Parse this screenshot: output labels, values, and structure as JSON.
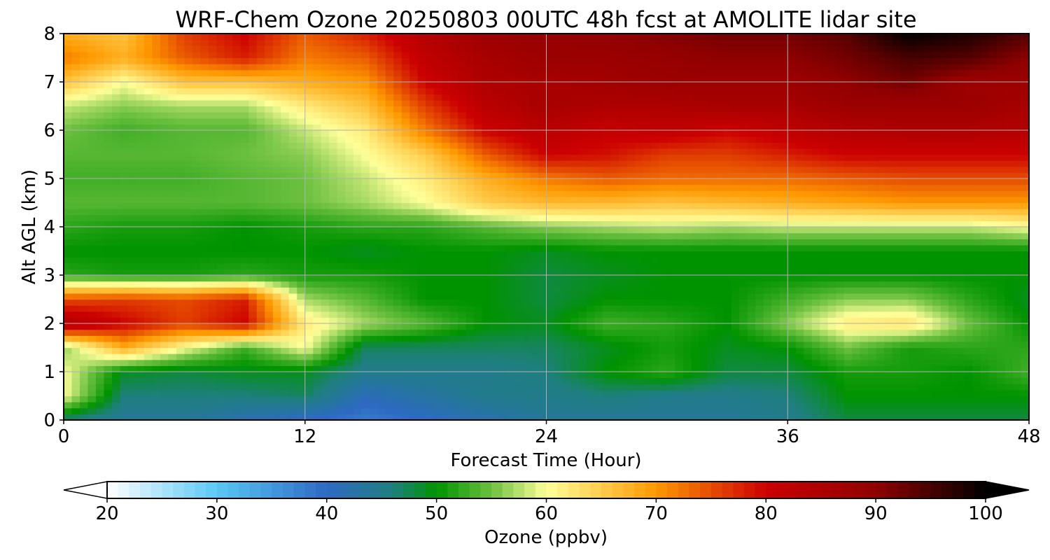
{
  "chart_data": {
    "type": "heatmap",
    "title": "WRF-Chem Ozone  20250803 00UTC 48h fcst at AMOLITE lidar site",
    "xlabel": "Forecast Time (Hour)",
    "ylabel": "Alt AGL (km)",
    "xlim": [
      0,
      48
    ],
    "ylim": [
      0,
      8
    ],
    "x_ticks": [
      "0",
      "12",
      "24",
      "36",
      "48"
    ],
    "y_ticks": [
      "0",
      "1",
      "2",
      "3",
      "4",
      "5",
      "6",
      "7",
      "8"
    ],
    "grid": true,
    "x": [
      0,
      3,
      6,
      9,
      12,
      15,
      18,
      21,
      24,
      27,
      30,
      33,
      36,
      39,
      42,
      45,
      48
    ],
    "y": [
      0,
      0.5,
      1,
      1.5,
      2,
      2.5,
      3,
      3.5,
      4,
      4.5,
      5,
      5.5,
      6,
      6.5,
      7,
      7.5,
      8
    ],
    "z": [
      [
        46,
        44,
        44,
        42,
        40,
        38,
        40,
        42,
        44,
        44,
        44,
        44,
        45,
        48,
        48,
        48,
        48
      ],
      [
        60,
        46,
        46,
        46,
        47,
        41,
        43,
        45,
        45,
        46,
        45,
        45,
        46,
        50,
        50,
        50,
        50
      ],
      [
        60,
        49,
        48,
        49,
        49,
        45,
        45,
        45,
        46,
        50,
        52,
        48,
        48,
        51,
        51,
        50,
        53
      ],
      [
        56,
        68,
        60,
        53,
        60,
        47,
        47,
        47,
        47,
        49,
        51,
        49,
        50,
        55,
        51,
        52,
        52
      ],
      [
        85,
        80,
        76,
        80,
        62,
        57,
        54,
        50,
        49,
        53,
        52,
        50,
        56,
        62,
        63,
        55,
        50
      ],
      [
        75,
        76,
        75,
        78,
        57,
        54,
        50,
        50,
        48,
        50,
        50,
        50,
        53,
        56,
        56,
        52,
        49
      ],
      [
        52,
        51,
        51,
        52,
        51,
        51,
        50,
        50,
        48,
        49,
        50,
        50,
        50,
        50,
        50,
        50,
        50
      ],
      [
        50,
        50,
        50,
        50,
        50,
        49,
        50,
        50,
        49,
        50,
        50,
        50,
        50,
        50,
        50,
        50,
        50
      ],
      [
        52,
        51,
        51,
        50,
        51,
        52,
        52,
        54,
        56,
        57,
        58,
        57,
        58,
        58,
        58,
        58,
        60
      ],
      [
        54,
        54,
        54,
        54,
        55,
        57,
        60,
        65,
        67,
        67,
        66,
        67,
        68,
        69,
        70,
        70,
        70
      ],
      [
        53,
        53,
        53,
        54,
        55,
        58,
        62,
        68,
        72,
        74,
        73,
        73,
        73,
        74,
        75,
        75,
        75
      ],
      [
        54,
        54,
        54,
        55,
        56,
        60,
        65,
        74,
        80,
        79,
        76,
        76,
        78,
        80,
        80,
        80,
        80
      ],
      [
        55,
        53,
        54,
        54,
        58,
        62,
        72,
        80,
        83,
        81,
        82,
        80,
        82,
        84,
        85,
        85,
        84
      ],
      [
        58,
        56,
        57,
        57,
        62,
        66,
        76,
        83,
        86,
        85,
        85,
        86,
        86,
        88,
        88,
        88,
        86
      ],
      [
        66,
        60,
        66,
        66,
        68,
        70,
        80,
        85,
        86,
        87,
        88,
        88,
        88,
        90,
        92,
        88,
        88
      ],
      [
        72,
        68,
        74,
        78,
        72,
        74,
        82,
        86,
        88,
        88,
        89,
        90,
        90,
        92,
        95,
        94,
        90
      ],
      [
        68,
        66,
        76,
        80,
        74,
        78,
        84,
        88,
        89,
        90,
        91,
        92,
        92,
        94,
        100,
        98,
        94
      ]
    ],
    "colorbar": {
      "label": "Ozone  (ppbv)",
      "vmin": 20,
      "vmax": 100,
      "ticks": [
        "20",
        "30",
        "40",
        "50",
        "60",
        "70",
        "80",
        "90",
        "100"
      ],
      "extend": "both",
      "stops": [
        {
          "v": 20,
          "color": "#ffffff"
        },
        {
          "v": 30,
          "color": "#5ac8f5"
        },
        {
          "v": 40,
          "color": "#2d69c3"
        },
        {
          "v": 46,
          "color": "#1f7f7f"
        },
        {
          "v": 50,
          "color": "#009300"
        },
        {
          "v": 55,
          "color": "#6cc040"
        },
        {
          "v": 60,
          "color": "#ffff99"
        },
        {
          "v": 70,
          "color": "#ff9900"
        },
        {
          "v": 80,
          "color": "#cc0000"
        },
        {
          "v": 90,
          "color": "#900000"
        },
        {
          "v": 100,
          "color": "#000000"
        }
      ],
      "under_color": "#ffffff",
      "over_color": "#000000"
    }
  }
}
